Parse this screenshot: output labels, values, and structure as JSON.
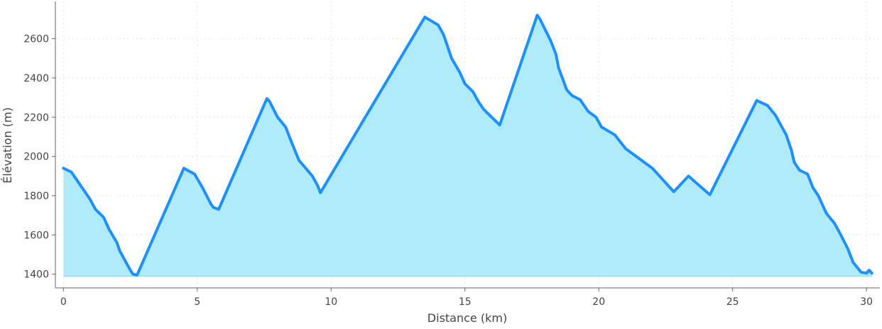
{
  "chart_data": {
    "type": "area",
    "title": "",
    "xlabel": "Distance (km)",
    "ylabel": "Élévation (m)",
    "xlim": [
      -0.3,
      30.5
    ],
    "ylim": [
      1330,
      2790
    ],
    "xticks": [
      0,
      5,
      10,
      15,
      20,
      25,
      30
    ],
    "yticks": [
      1400,
      1600,
      1800,
      2000,
      2200,
      2400,
      2600
    ],
    "grid": true,
    "fill_baseline": 1390,
    "line_color": "#1e90ff",
    "fill_color": "#b0ebfc",
    "x": [
      0,
      0.3,
      0.6,
      0.8,
      1,
      1.2,
      1.5,
      1.7,
      2,
      2.1,
      2.3,
      2.5,
      2.6,
      2.75,
      4.5,
      4.9,
      5.2,
      5.5,
      5.6,
      5.8,
      7.6,
      7.7,
      8,
      8.3,
      8.5,
      8.8,
      9.3,
      9.5,
      9.6,
      13.5,
      14,
      14.2,
      14.5,
      14.8,
      15,
      15.3,
      15.5,
      15.7,
      16,
      16.3,
      17.7,
      17.8,
      18.2,
      18.4,
      18.5,
      18.8,
      19,
      19.3,
      19.6,
      19.9,
      20.1,
      20.6,
      21,
      21.5,
      22,
      22.8,
      23.35,
      23.6,
      24.15,
      25.9,
      26.3,
      26.6,
      26.8,
      27,
      27.2,
      27.3,
      27.5,
      27.8,
      28,
      28.2,
      28.5,
      28.8,
      29,
      29.3,
      29.5,
      29.8,
      30,
      30.1,
      30.2
    ],
    "y": [
      1940,
      1920,
      1860,
      1820,
      1780,
      1730,
      1690,
      1630,
      1560,
      1520,
      1470,
      1420,
      1400,
      1395,
      1940,
      1910,
      1840,
      1760,
      1740,
      1730,
      2295,
      2280,
      2200,
      2150,
      2080,
      1980,
      1900,
      1850,
      1815,
      2710,
      2670,
      2620,
      2500,
      2430,
      2370,
      2330,
      2280,
      2240,
      2200,
      2160,
      2720,
      2700,
      2590,
      2520,
      2450,
      2340,
      2310,
      2290,
      2230,
      2200,
      2150,
      2110,
      2040,
      1990,
      1940,
      1820,
      1900,
      1870,
      1805,
      2285,
      2260,
      2210,
      2160,
      2110,
      2030,
      1970,
      1930,
      1910,
      1840,
      1800,
      1710,
      1660,
      1610,
      1530,
      1460,
      1410,
      1405,
      1420,
      1405
    ]
  }
}
